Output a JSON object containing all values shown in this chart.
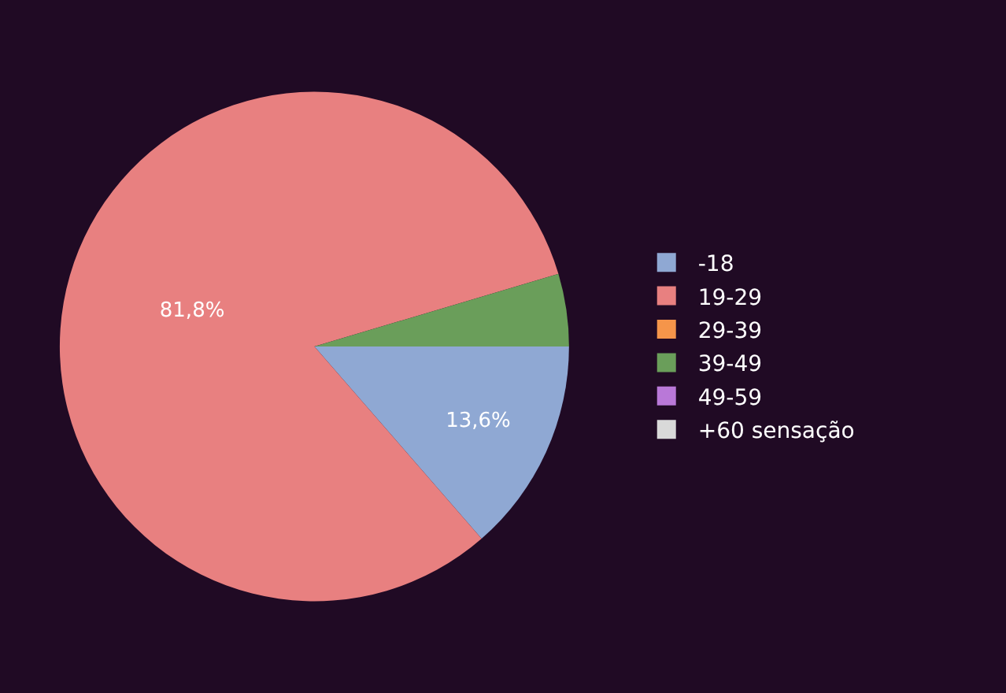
{
  "chart_data": {
    "type": "pie",
    "categories": [
      "-18",
      "19-29",
      "29-39",
      "39-49",
      "49-59",
      "+60 sensação"
    ],
    "values": [
      13.6,
      81.8,
      0,
      4.6,
      0,
      0
    ],
    "colors": [
      "#8fa8d3",
      "#e88080",
      "#f5954a",
      "#6a9e5a",
      "#b978d8",
      "#d9d9d9"
    ],
    "value_labels": [
      "13,6%",
      "81,8%",
      null,
      null,
      null,
      null
    ],
    "legend": "right"
  }
}
